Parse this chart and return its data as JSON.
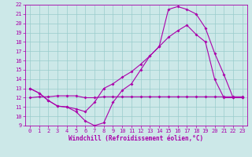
{
  "bg_color": "#cce8e8",
  "grid_color": "#99cccc",
  "line_color": "#aa00aa",
  "xlabel": "Windchill (Refroidissement éolien,°C)",
  "xlim": [
    -0.5,
    23.5
  ],
  "ylim": [
    9,
    22
  ],
  "xticks": [
    0,
    1,
    2,
    3,
    4,
    5,
    6,
    7,
    8,
    9,
    10,
    11,
    12,
    13,
    14,
    15,
    16,
    17,
    18,
    19,
    20,
    21,
    22,
    23
  ],
  "yticks": [
    9,
    10,
    11,
    12,
    13,
    14,
    15,
    16,
    17,
    18,
    19,
    20,
    21,
    22
  ],
  "line1_x": [
    0,
    1,
    2,
    3,
    4,
    5,
    6,
    7,
    8,
    9,
    10,
    11,
    12,
    13,
    14,
    15,
    16,
    17,
    18,
    19,
    20,
    21,
    22,
    23
  ],
  "line1_y": [
    13.0,
    12.5,
    11.7,
    11.1,
    11.0,
    10.5,
    9.5,
    9.0,
    9.3,
    11.5,
    12.8,
    13.5,
    15.0,
    16.5,
    17.5,
    21.5,
    21.8,
    21.5,
    21.0,
    19.5,
    16.8,
    14.5,
    12.0,
    12.0
  ],
  "line2_x": [
    0,
    1,
    2,
    3,
    4,
    5,
    6,
    7,
    8,
    9,
    10,
    11,
    12,
    13,
    14,
    15,
    16,
    17,
    18,
    19,
    20,
    21,
    22,
    23
  ],
  "line2_y": [
    13.0,
    12.5,
    11.7,
    11.1,
    11.0,
    10.8,
    10.5,
    11.5,
    13.0,
    13.5,
    14.2,
    14.8,
    15.6,
    16.5,
    17.5,
    18.5,
    19.2,
    19.8,
    18.8,
    18.0,
    14.0,
    12.0,
    12.0,
    12.0
  ],
  "line3_x": [
    0,
    1,
    2,
    3,
    4,
    5,
    6,
    7,
    8,
    9,
    10,
    11,
    12,
    13,
    14,
    15,
    16,
    17,
    18,
    19,
    20,
    21,
    22,
    23
  ],
  "line3_y": [
    12.0,
    12.1,
    12.1,
    12.2,
    12.2,
    12.2,
    12.0,
    12.0,
    12.1,
    12.1,
    12.1,
    12.1,
    12.1,
    12.1,
    12.1,
    12.1,
    12.1,
    12.1,
    12.1,
    12.1,
    12.1,
    12.1,
    12.1,
    12.1
  ],
  "tick_fontsize": 5,
  "label_fontsize": 5.5
}
